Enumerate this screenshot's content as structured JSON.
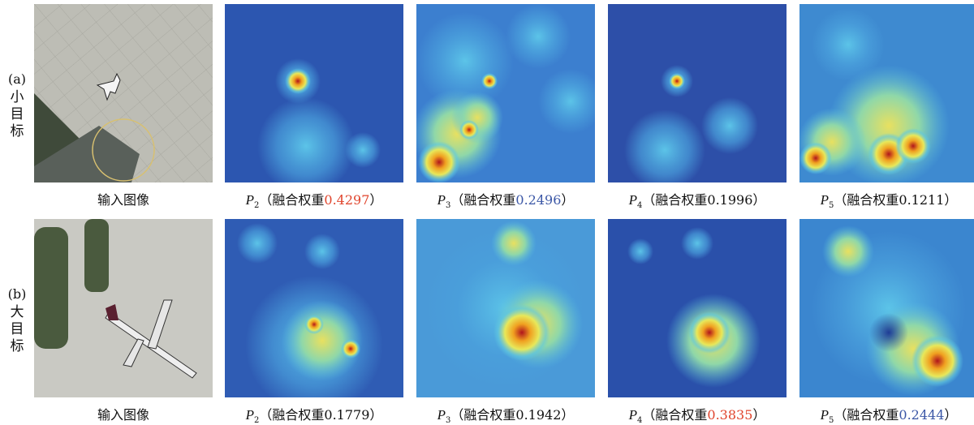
{
  "rows": [
    {
      "tag": "(a)",
      "label": "小目标",
      "input_caption": "输入图像",
      "panels": [
        {
          "symbol": "P",
          "subscript": "2",
          "prefix": "（融合权重",
          "weight": "0.4297",
          "suffix": "）",
          "weight_color": "#e0442c"
        },
        {
          "symbol": "P",
          "subscript": "3",
          "prefix": "（融合权重",
          "weight": "0.2496",
          "suffix": "）",
          "weight_color": "#3b57a6"
        },
        {
          "symbol": "P",
          "subscript": "4",
          "prefix": "（融合权重",
          "weight": "0.1996",
          "suffix": "）"
        },
        {
          "symbol": "P",
          "subscript": "5",
          "prefix": "（融合权重",
          "weight": "0.1211",
          "suffix": "）"
        }
      ]
    },
    {
      "tag": "(b)",
      "label": "大目标",
      "input_caption": "输入图像",
      "panels": [
        {
          "symbol": "P",
          "subscript": "2",
          "prefix": "（融合权重",
          "weight": "0.1779",
          "suffix": "）"
        },
        {
          "symbol": "P",
          "subscript": "3",
          "prefix": "（融合权重",
          "weight": "0.1942",
          "suffix": "）"
        },
        {
          "symbol": "P",
          "subscript": "4",
          "prefix": "（融合权重",
          "weight": "0.3835",
          "suffix": "）",
          "weight_color": "#e0442c"
        },
        {
          "symbol": "P",
          "subscript": "5",
          "prefix": "（融合权重",
          "weight": "0.2444",
          "suffix": "）",
          "weight_color": "#3b57a6"
        }
      ]
    }
  ]
}
